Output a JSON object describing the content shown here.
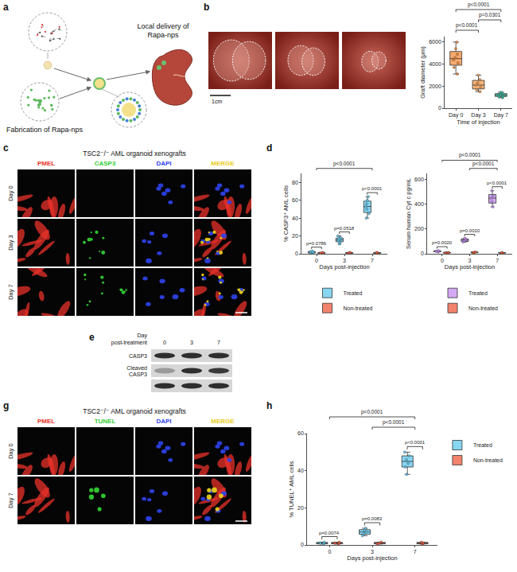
{
  "panels": {
    "a": {
      "label": "a",
      "delivery": [
        "Local delivery of",
        "Rapa-nps"
      ],
      "fabrication": "Fabrication of Rapa-nps"
    },
    "b": {
      "label": "b",
      "scale_bar": "1cm"
    },
    "c": {
      "label": "c",
      "title": "TSC2⁻/⁻ AML organoid xenografts",
      "channels": [
        {
          "name": "PMEL",
          "color": "#e8322a"
        },
        {
          "name": "CASP3",
          "color": "#33cc33"
        },
        {
          "name": "DAPI",
          "color": "#2f44ee"
        },
        {
          "name": "MERGE",
          "color": "#e6cc1a"
        }
      ],
      "rows": [
        "Day 0",
        "Day 3",
        "Day 7"
      ]
    },
    "d": {
      "label": "d"
    },
    "e": {
      "label": "e",
      "header": [
        "Day",
        "post-treatment"
      ],
      "lanes": [
        "0",
        "3",
        "7"
      ],
      "rows": [
        [
          "CASP3"
        ],
        [
          "Cleaved",
          "CASP3"
        ],
        null
      ]
    },
    "g": {
      "label": "g",
      "title": "TSC2⁻/⁻ AML organoid xenografts",
      "channels": [
        {
          "name": "PMEL",
          "color": "#e8322a"
        },
        {
          "name": "TUNEL",
          "color": "#33cc33"
        },
        {
          "name": "DAPI",
          "color": "#2f44ee"
        },
        {
          "name": "MERGE",
          "color": "#e6cc1a"
        }
      ],
      "rows": [
        "Day 0",
        "Day 7"
      ]
    },
    "h": {
      "label": "h"
    }
  },
  "chart_data": [
    {
      "type": "box",
      "x_label": "Time of injection",
      "y_label": "Graft diameter (μm)",
      "categories": [
        "Day 0",
        "Day 3",
        "Day 7"
      ],
      "values": [
        [
          3100,
          3700,
          4100,
          4400,
          4600,
          4900,
          5400,
          6000
        ],
        [
          1500,
          1700,
          1900,
          2100,
          2300,
          2600,
          3000
        ],
        [
          950,
          1050,
          1100,
          1200,
          1250,
          1350,
          1450
        ]
      ],
      "colors": [
        "#f28c3c",
        "#f49a4c",
        "#33bfa5"
      ],
      "ylim": [
        0,
        6500
      ],
      "yticks": [
        0,
        2000,
        4000,
        6000
      ],
      "grid": false,
      "annotations": [
        {
          "text": "p<0.0001",
          "between": [
            "Day 0",
            "Day 3"
          ]
        },
        {
          "text": "p=0.0301",
          "between": [
            "Day 3",
            "Day 7"
          ]
        },
        {
          "text": "p<0.0001",
          "between": [
            "Day 0",
            "Day 7"
          ]
        }
      ]
    },
    {
      "type": "box",
      "x_label": "Days post-injection",
      "y_label": "% CASP3⁺ AML cells",
      "categories": [
        "0",
        "3",
        "7"
      ],
      "series": [
        {
          "name": "Treated",
          "color": "#5fc8ee",
          "values": [
            [
              0.5,
              1.0,
              1.5,
              2.0,
              2.5,
              3.0
            ],
            [
              11,
              13,
              14,
              15,
              16,
              17,
              18,
              20
            ],
            [
              40,
              45,
              50,
              53,
              56,
              60,
              64
            ]
          ]
        },
        {
          "name": "Non-treated",
          "color": "#ee5a3c",
          "values": [
            [
              0.5,
              1.0,
              1.5
            ],
            [
              0.5,
              1.0,
              1.5
            ],
            [
              0.5,
              1.0,
              1.5
            ]
          ]
        }
      ],
      "ylim": [
        0,
        90
      ],
      "yticks": [
        0,
        20,
        40,
        60,
        80
      ],
      "grid": false,
      "legend": "bottom",
      "annotations": [
        {
          "text": "p<0.0001",
          "between": [
            "0",
            "7"
          ]
        },
        {
          "text": "p=0.0786",
          "at": "0"
        },
        {
          "text": "p=0.0518",
          "at": "3"
        },
        {
          "text": "p<0.0001",
          "at": "7"
        }
      ]
    },
    {
      "type": "box",
      "x_label": "Days post-injection",
      "y_label": "Serum human Cyt c pg/mL",
      "categories": [
        "0",
        "3",
        "7"
      ],
      "series": [
        {
          "name": "Treated",
          "color": "#c58cf0",
          "values": [
            [
              15,
              20,
              25
            ],
            [
              95,
              105,
              115,
              125
            ],
            [
              380,
              420,
              450,
              470,
              510
            ]
          ]
        },
        {
          "name": "Non-treated",
          "color": "#ee5a3c",
          "values": [
            [
              5,
              10,
              12
            ],
            [
              8,
              12,
              15
            ],
            [
              5,
              8,
              10
            ]
          ]
        }
      ],
      "ylim": [
        0,
        650
      ],
      "yticks": [
        0,
        200,
        400,
        600
      ],
      "grid": false,
      "legend": "bottom",
      "annotations": [
        {
          "text": "p<0.0001",
          "between": [
            "3",
            "7"
          ]
        },
        {
          "text": "p<0.0001",
          "between": [
            "0",
            "7"
          ]
        },
        {
          "text": "p=0.0020",
          "at": "0"
        },
        {
          "text": "p=0.0010",
          "at": "3"
        },
        {
          "text": "p<0.0001",
          "at": "7"
        }
      ]
    },
    {
      "type": "box",
      "x_label": "Days post-injection",
      "y_label": "% TUNEL⁺ AML cells",
      "categories": [
        "0",
        "3",
        "7"
      ],
      "series": [
        {
          "name": "Treated",
          "color": "#5fc8ee",
          "values": [
            [
              0.5,
              1.0,
              1.5
            ],
            [
              5,
              6,
              7,
              8,
              9
            ],
            [
              38,
              42,
              44,
              46,
              48,
              50
            ]
          ]
        },
        {
          "name": "Non-treated",
          "color": "#ee5a3c",
          "values": [
            [
              0.5,
              1.0,
              1.5
            ],
            [
              0.5,
              1.0,
              1.5
            ],
            [
              0.5,
              1.0,
              1.5
            ]
          ]
        }
      ],
      "ylim": [
        0,
        60
      ],
      "yticks": [
        0,
        20,
        40,
        60
      ],
      "grid": false,
      "legend": "right",
      "annotations": [
        {
          "text": "p<0.0001",
          "between": [
            "3",
            "7"
          ]
        },
        {
          "text": "p<0.0001",
          "between": [
            "0",
            "7"
          ]
        },
        {
          "text": "p=0.0074",
          "at": "0"
        },
        {
          "text": "p=0.0083",
          "at": "3"
        },
        {
          "text": "p<0.0001",
          "at": "7"
        }
      ]
    }
  ]
}
